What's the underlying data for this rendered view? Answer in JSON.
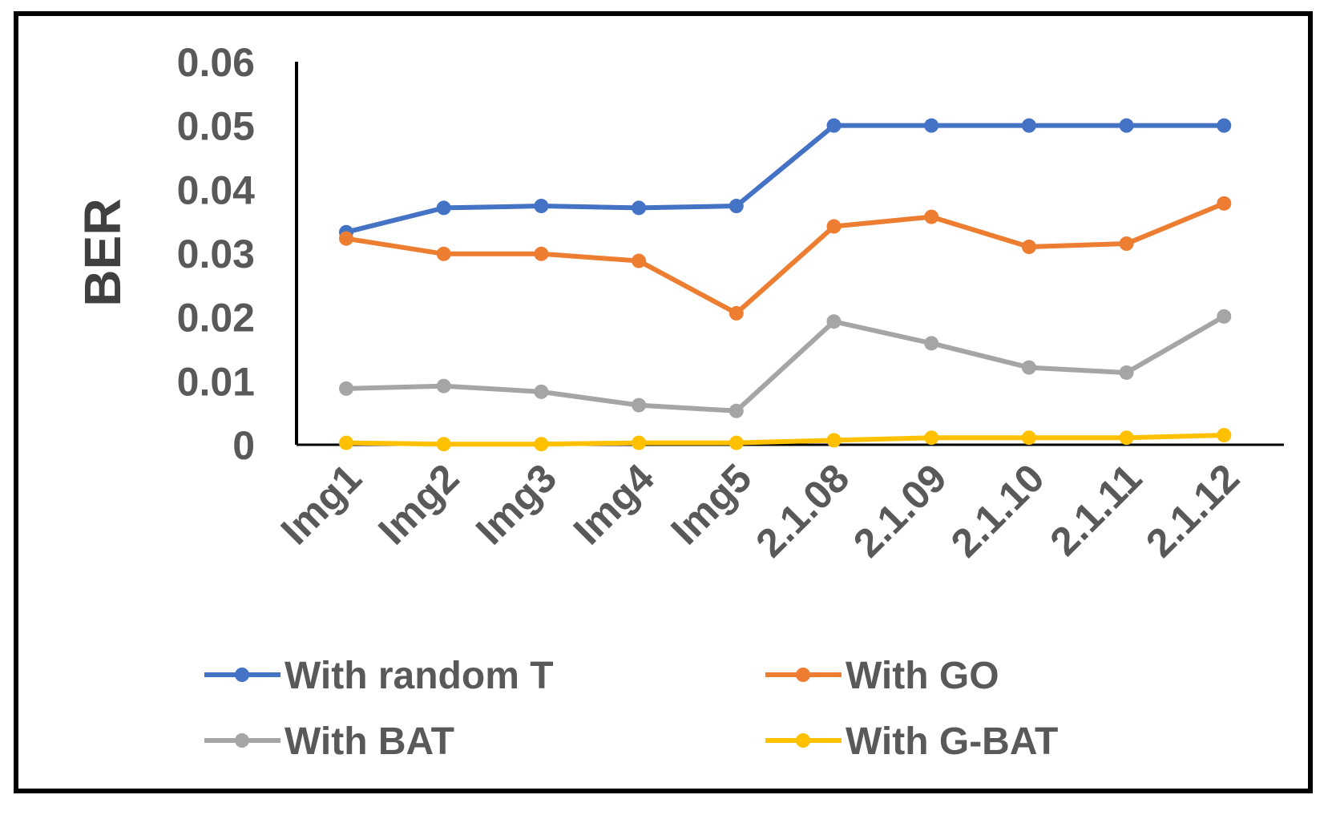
{
  "chart_data": {
    "type": "line",
    "title": "",
    "xlabel": "",
    "ylabel": "BER",
    "ylim": [
      0,
      0.06
    ],
    "yticks": [
      0,
      0.01,
      0.02,
      0.03,
      0.04,
      0.05,
      0.06
    ],
    "ytick_labels": [
      "0",
      "0.01",
      "0.02",
      "0.03",
      "0.04",
      "0.05",
      "0.06"
    ],
    "categories": [
      "Img1",
      "Img2",
      "Img3",
      "Img4",
      "Img5",
      "2.1.08",
      "2.1.09",
      "2.1.10",
      "2.1.11",
      "2.1.12"
    ],
    "grid": false,
    "legend_position": "bottom",
    "series": [
      {
        "name": "With random T",
        "color": "#4472C4",
        "values": [
          0.0333,
          0.0371,
          0.0374,
          0.0371,
          0.0374,
          0.05,
          0.05,
          0.05,
          0.05,
          0.05
        ]
      },
      {
        "name": "With GO",
        "color": "#ED7D31",
        "values": [
          0.0323,
          0.0299,
          0.0299,
          0.0288,
          0.0206,
          0.0342,
          0.0357,
          0.031,
          0.0315,
          0.0378
        ]
      },
      {
        "name": "With BAT",
        "color": "#A5A5A5",
        "values": [
          0.0088,
          0.0092,
          0.0083,
          0.0062,
          0.0053,
          0.0193,
          0.0159,
          0.0121,
          0.0113,
          0.0201
        ]
      },
      {
        "name": "With G-BAT",
        "color": "#FFC000",
        "values": [
          0.0003,
          0.0001,
          0.0001,
          0.0003,
          0.0003,
          0.0007,
          0.0011,
          0.0011,
          0.0011,
          0.0015
        ]
      }
    ]
  }
}
